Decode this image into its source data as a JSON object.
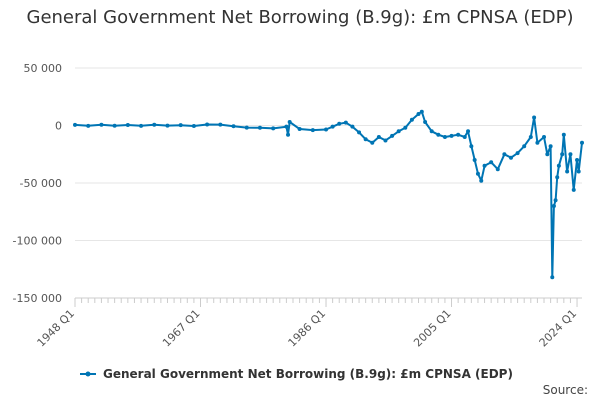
{
  "chart_data": {
    "type": "line",
    "title": "General Government Net Borrowing (B.9g): £m CPNSA (EDP)",
    "xlabel": "",
    "ylabel": "",
    "ylim": [
      -150000,
      50000
    ],
    "grid": true,
    "yticks": [
      {
        "value": 50000,
        "label": "50 000"
      },
      {
        "value": 0,
        "label": "0"
      },
      {
        "value": -50000,
        "label": "-50 000"
      },
      {
        "value": -100000,
        "label": "-100 000"
      },
      {
        "value": -150000,
        "label": "-150 000"
      }
    ],
    "xticks": [
      "1948 Q1",
      "1967 Q1",
      "1986 Q1",
      "2005 Q1",
      "2024 Q1"
    ],
    "xrange": [
      "1948 Q1",
      "2024 Q4"
    ],
    "legend_position": "bottom",
    "series": [
      {
        "name": "General Government Net Borrowing (B.9g): £m CPNSA (EDP)",
        "color": "#0075b4",
        "points": [
          [
            "1948 Q1",
            500
          ],
          [
            "1950 Q1",
            -300
          ],
          [
            "1952 Q1",
            600
          ],
          [
            "1954 Q1",
            -200
          ],
          [
            "1956 Q1",
            400
          ],
          [
            "1958 Q1",
            -300
          ],
          [
            "1960 Q1",
            700
          ],
          [
            "1962 Q1",
            -100
          ],
          [
            "1964 Q1",
            300
          ],
          [
            "1966 Q1",
            -400
          ],
          [
            "1968 Q1",
            900
          ],
          [
            "1970 Q1",
            800
          ],
          [
            "1972 Q1",
            -600
          ],
          [
            "1974 Q1",
            -1800
          ],
          [
            "1976 Q1",
            -2000
          ],
          [
            "1978 Q1",
            -2500
          ],
          [
            "1980 Q1",
            -1000
          ],
          [
            "1980 Q2",
            -8000
          ],
          [
            "1980 Q3",
            3000
          ],
          [
            "1982 Q1",
            -3000
          ],
          [
            "1984 Q1",
            -4000
          ],
          [
            "1986 Q1",
            -3500
          ],
          [
            "1987 Q1",
            -1000
          ],
          [
            "1988 Q1",
            1500
          ],
          [
            "1989 Q1",
            2500
          ],
          [
            "1990 Q1",
            -1000
          ],
          [
            "1991 Q1",
            -6000
          ],
          [
            "1992 Q1",
            -12000
          ],
          [
            "1993 Q1",
            -15000
          ],
          [
            "1994 Q1",
            -10000
          ],
          [
            "1995 Q1",
            -13000
          ],
          [
            "1996 Q1",
            -9000
          ],
          [
            "1997 Q1",
            -5000
          ],
          [
            "1998 Q1",
            -2000
          ],
          [
            "1999 Q1",
            5000
          ],
          [
            "2000 Q1",
            10000
          ],
          [
            "2000 Q3",
            12000
          ],
          [
            "2001 Q1",
            3000
          ],
          [
            "2002 Q1",
            -5000
          ],
          [
            "2003 Q1",
            -8000
          ],
          [
            "2004 Q1",
            -10000
          ],
          [
            "2005 Q1",
            -9000
          ],
          [
            "2006 Q1",
            -8000
          ],
          [
            "2007 Q1",
            -10000
          ],
          [
            "2007 Q3",
            -5000
          ],
          [
            "2008 Q1",
            -18000
          ],
          [
            "2008 Q3",
            -30000
          ],
          [
            "2009 Q1",
            -42000
          ],
          [
            "2009 Q3",
            -48000
          ],
          [
            "2010 Q1",
            -35000
          ],
          [
            "2011 Q1",
            -32000
          ],
          [
            "2012 Q1",
            -38000
          ],
          [
            "2013 Q1",
            -25000
          ],
          [
            "2014 Q1",
            -28000
          ],
          [
            "2015 Q1",
            -24000
          ],
          [
            "2016 Q1",
            -18000
          ],
          [
            "2017 Q1",
            -10000
          ],
          [
            "2017 Q3",
            7000
          ],
          [
            "2018 Q1",
            -15000
          ],
          [
            "2019 Q1",
            -10000
          ],
          [
            "2019 Q3",
            -25000
          ],
          [
            "2020 Q1",
            -18000
          ],
          [
            "2020 Q2",
            -132000
          ],
          [
            "2020 Q3",
            -70000
          ],
          [
            "2020 Q4",
            -65000
          ],
          [
            "2021 Q1",
            -45000
          ],
          [
            "2021 Q2",
            -35000
          ],
          [
            "2021 Q4",
            -25000
          ],
          [
            "2022 Q1",
            -8000
          ],
          [
            "2022 Q3",
            -40000
          ],
          [
            "2023 Q1",
            -25000
          ],
          [
            "2023 Q3",
            -56000
          ],
          [
            "2024 Q1",
            -30000
          ],
          [
            "2024 Q2",
            -40000
          ],
          [
            "2024 Q4",
            -15000
          ]
        ]
      }
    ],
    "source_label": "Source:"
  }
}
